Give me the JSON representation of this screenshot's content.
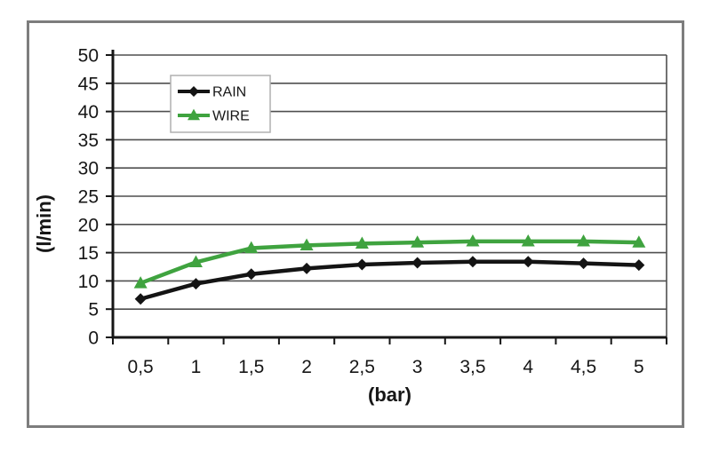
{
  "chart_data": {
    "type": "line",
    "title": "",
    "xlabel": "(bar)",
    "ylabel": "(l/min)",
    "categories": [
      "0,5",
      "1",
      "1,5",
      "2",
      "2,5",
      "3",
      "3,5",
      "4",
      "4,5",
      "5"
    ],
    "x_values": [
      0.5,
      1,
      1.5,
      2,
      2.5,
      3,
      3.5,
      4,
      4.5,
      5
    ],
    "y_ticks": [
      0,
      5,
      10,
      15,
      20,
      25,
      30,
      35,
      40,
      45,
      50
    ],
    "ylim": [
      0,
      50
    ],
    "grid": "horizontal",
    "legend_position": "top-left-inside",
    "series": [
      {
        "name": "RAIN",
        "marker": "diamond",
        "color": "#141414",
        "values": [
          6.8,
          9.5,
          11.2,
          12.2,
          12.9,
          13.2,
          13.4,
          13.4,
          13.1,
          12.8
        ]
      },
      {
        "name": "WIRE",
        "marker": "triangle",
        "color": "#3fa33f",
        "values": [
          9.6,
          13.3,
          15.8,
          16.3,
          16.6,
          16.8,
          17.0,
          17.0,
          17.0,
          16.8
        ]
      }
    ],
    "colors": {
      "frame_border": "#7d7d7d",
      "plot_background": "#ffffff",
      "gridline": "#4f4f4f",
      "axis": "#161616",
      "legend_border": "#b0b0b0",
      "legend_background": "#ffffff",
      "label_text": "#161616"
    }
  }
}
